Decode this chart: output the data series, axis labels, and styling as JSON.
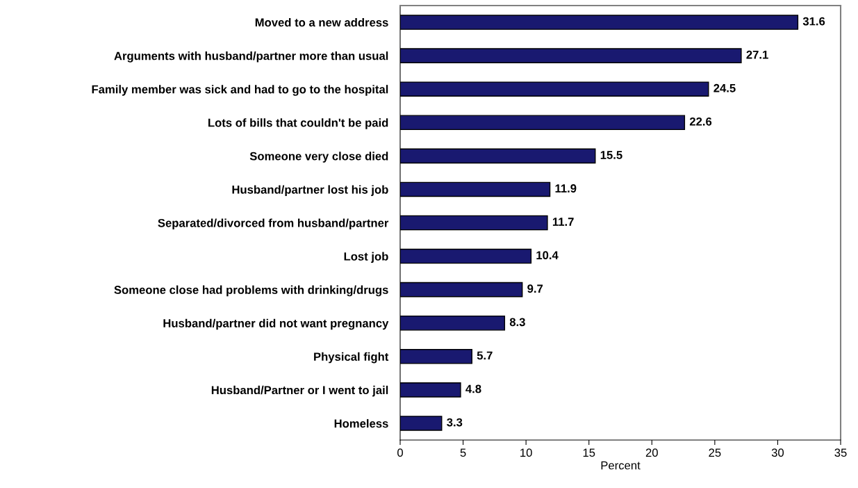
{
  "chart_data": {
    "type": "bar",
    "orientation": "horizontal",
    "xlabel": "Percent",
    "categories": [
      "Moved to a new address",
      "Arguments with husband/partner more than usual",
      "Family member was sick and had to go to the hospital",
      "Lots of bills that couldn't be paid",
      "Someone very close died",
      "Husband/partner lost his job",
      "Separated/divorced from husband/partner",
      "Lost job",
      "Someone close had problems with drinking/drugs",
      "Husband/partner did not want pregnancy",
      "Physical fight",
      "Husband/Partner or I went to jail",
      "Homeless"
    ],
    "values": [
      31.6,
      27.1,
      24.5,
      22.6,
      15.5,
      11.9,
      11.7,
      10.4,
      9.7,
      8.3,
      5.7,
      4.8,
      3.3
    ],
    "color": "#191970",
    "data_labels": true,
    "xlim": [
      0,
      35
    ],
    "xticks": [
      0,
      5,
      10,
      15,
      20,
      25,
      30,
      35
    ],
    "grid": false,
    "legend": false
  }
}
